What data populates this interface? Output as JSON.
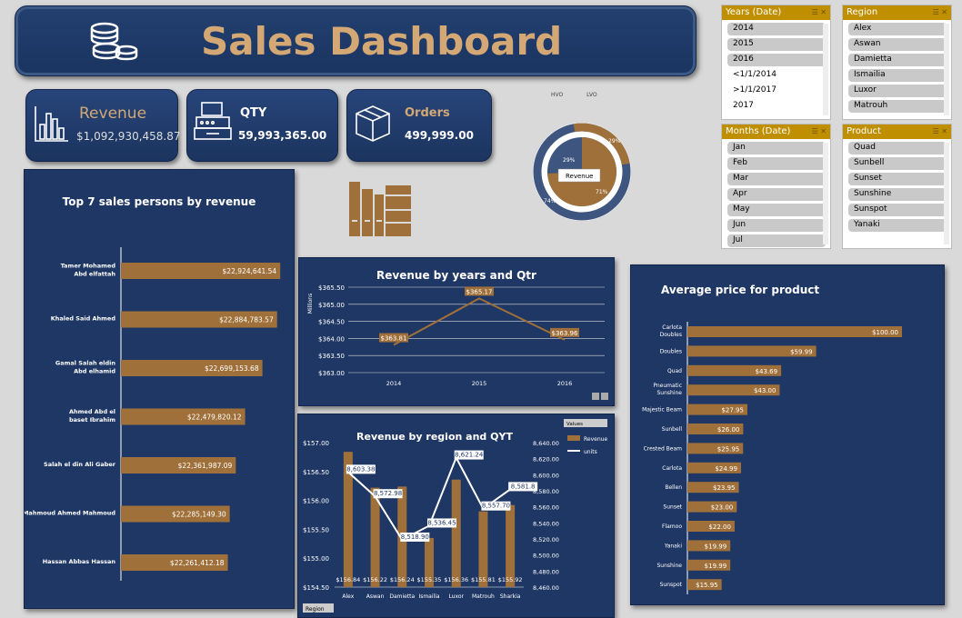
{
  "title": "Sales Dashboard",
  "kpis": {
    "revenue": {
      "label": "Revenue",
      "value": "$1,092,930,458.87"
    },
    "qty": {
      "label": "QTY",
      "value": "59,993,365.00"
    },
    "orders": {
      "label": "Orders",
      "value": "499,999.00"
    }
  },
  "donut": {
    "legend": [
      "HVO",
      "LVO"
    ],
    "center_label": "Revenue",
    "labels": [
      "29%",
      "29%",
      "71%",
      "74%"
    ]
  },
  "slicers": {
    "years": {
      "header": "Years (Date)",
      "items": [
        "2014",
        "2015",
        "2016",
        "<1/1/2014",
        ">1/1/2017",
        "2017"
      ]
    },
    "region": {
      "header": "Region",
      "items": [
        "Alex",
        "Aswan",
        "Damietta",
        "Ismailia",
        "Luxor",
        "Matrouh"
      ]
    },
    "months": {
      "header": "Months (Date)",
      "items": [
        "Jan",
        "Feb",
        "Mar",
        "Apr",
        "May",
        "Jun",
        "Jul"
      ]
    },
    "product": {
      "header": "Product",
      "items": [
        "Quad",
        "Sunbell",
        "Sunset",
        "Sunshine",
        "Sunspot",
        "Yanaki"
      ]
    }
  },
  "colors": {
    "panel": "#1f3764",
    "bar": "#a0703a",
    "accent": "#d3a875",
    "slicer_header": "#bf8f00"
  },
  "chart_data": [
    {
      "type": "bar",
      "title": "Top 7 sales persons by revenue",
      "categories": [
        "Tamer Mohamed Abd elfattah",
        "Khaled Said Ahmed",
        "Gamal Salah eldin Abd elhamid",
        "Ahmed Abd el baset Ibrahim",
        "Salah el din Ali Gaber",
        "Mahmoud Ahmed Mahmoud",
        "Hassan Abbas Hassan"
      ],
      "values": [
        22924641.54,
        22884783.57,
        22699153.68,
        22479820.12,
        22361987.09,
        22285149.3,
        22261412.18
      ],
      "labels": [
        "$22,924,641.54",
        "$22,884,783.57",
        "$22,699,153.68",
        "$22,479,820.12",
        "$22,361,987.09",
        "$22,285,149.30",
        "$22,261,412.18"
      ]
    },
    {
      "type": "line",
      "title": "Revenue by years and Qtr",
      "ylabel": "Millions",
      "categories": [
        "2014",
        "2015",
        "2016"
      ],
      "values": [
        363.81,
        365.17,
        363.96
      ],
      "labels": [
        "$363.81",
        "$365.17",
        "$363.96"
      ],
      "ylim": [
        363.0,
        365.5
      ],
      "yticks": [
        "$365.50",
        "$365.00",
        "$364.50",
        "$364.00",
        "$363.50",
        "$363.00"
      ]
    },
    {
      "type": "bar",
      "title": "Revenue by region and QYT",
      "categories": [
        "Alex",
        "Aswan",
        "Damietta",
        "Ismailia",
        "Luxor",
        "Matrouh",
        "Sharkia"
      ],
      "series": [
        {
          "name": "Revenue",
          "values": [
            156.84,
            156.22,
            156.24,
            155.35,
            156.36,
            155.81,
            155.92
          ],
          "labels": [
            "$156.84",
            "$156.22",
            "$156.24",
            "$155.35",
            "$156.36",
            "$155.81",
            "$155.92"
          ]
        },
        {
          "name": "units",
          "values": [
            8603.38,
            8572.98,
            8518.9,
            8536.45,
            8621.24,
            8557.7,
            8581.8
          ],
          "labels": [
            "8,603.38",
            "8,572.98",
            "8,518.90",
            "8,536.45",
            "8,621.24",
            "8,557.70",
            "8,581.8"
          ]
        }
      ],
      "ylim": [
        154.5,
        157
      ],
      "yticks_left": [
        "$157.00",
        "$156.50",
        "$156.00",
        "$155.50",
        "$155.00",
        "$154.50"
      ],
      "ylim_right": [
        8460,
        8640
      ],
      "yticks_right": [
        "8,640.00",
        "8,620.00",
        "8,600.00",
        "8,580.00",
        "8,560.00",
        "8,540.00",
        "8,520.00",
        "8,500.00",
        "8,480.00",
        "8,460.00"
      ],
      "legend_header": "Values",
      "legend": [
        "Revenue",
        "units"
      ],
      "filter_button": "Region"
    },
    {
      "type": "bar",
      "title": "Average price for product",
      "categories": [
        "Carlota Doubles",
        "Doubles",
        "Quad",
        "Pneumatic Sunshine",
        "Majestic Beam",
        "Sunbell",
        "Crested Beam",
        "Carlota",
        "Bellen",
        "Sunset",
        "Flamoo",
        "Yanaki",
        "Sunshine",
        "Sunspot"
      ],
      "values": [
        100,
        59.99,
        43.69,
        43.0,
        27.95,
        26.0,
        25.95,
        24.99,
        23.95,
        23.0,
        22.0,
        19.99,
        19.99,
        15.95
      ],
      "labels": [
        "$100.00",
        "$59.99",
        "$43.69",
        "$43.00",
        "$27.95",
        "$26.00",
        "$25.95",
        "$24.99",
        "$23.95",
        "$23.00",
        "$22.00",
        "$19.99",
        "$19.99",
        "$15.95"
      ]
    }
  ]
}
